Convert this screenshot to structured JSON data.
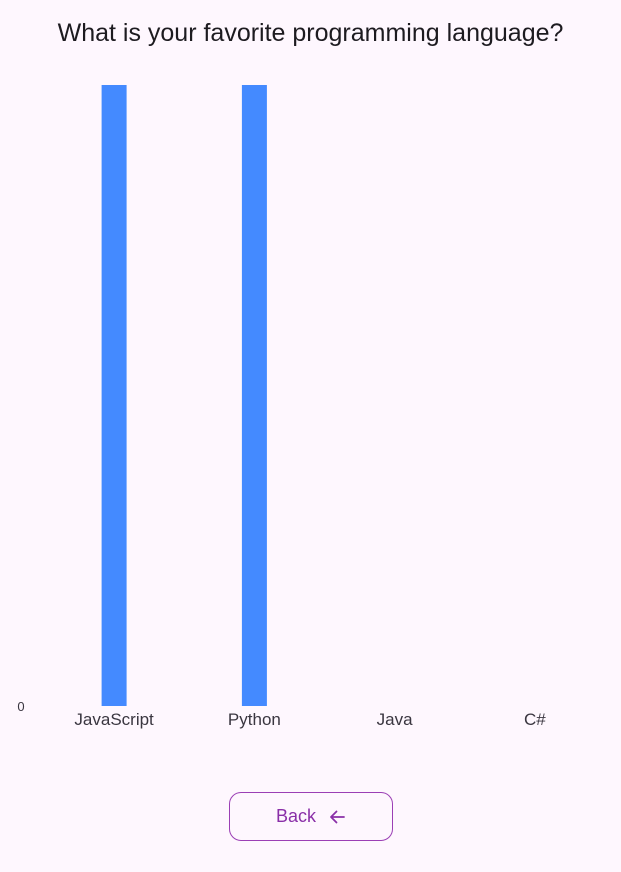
{
  "header": {
    "question": "What is your favorite programming language?"
  },
  "chart_data": {
    "type": "bar",
    "categories": [
      "JavaScript",
      "Python",
      "Java",
      "C#"
    ],
    "values": [
      1,
      1,
      0,
      0
    ],
    "ylim": [
      0,
      1
    ],
    "y_tick_labels": [
      "0"
    ],
    "grid": false,
    "bar_color": "#448aff"
  },
  "footer": {
    "back_label": "Back",
    "back_icon": "arrow-left-icon",
    "accent_color": "#8a2fa8"
  }
}
